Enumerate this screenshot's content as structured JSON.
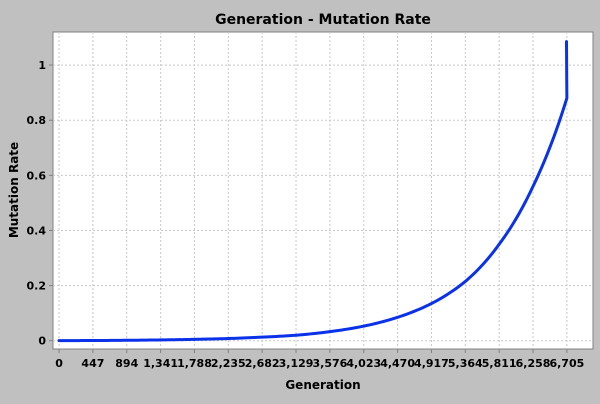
{
  "chart_data": {
    "type": "line",
    "title": "Generation - Mutation Rate",
    "xlabel": "Generation",
    "ylabel": "Mutation Rate",
    "x_tick_labels": [
      "0",
      "447",
      "894",
      "1,341",
      "1,788",
      "2,235",
      "2,682",
      "3,129",
      "3,576",
      "4,023",
      "4,470",
      "4,917",
      "5,364",
      "5,811",
      "6,258",
      "6,705"
    ],
    "y_ticks": [
      0,
      0.2,
      0.4,
      0.6,
      0.8,
      1
    ],
    "y_tick_labels": [
      "0",
      "0.2",
      "0.4",
      "0.6",
      "0.8",
      "1"
    ],
    "xlim": [
      -80,
      7050
    ],
    "ylim": [
      -0.03,
      1.12
    ],
    "grid": true,
    "line_color": "#0a32e8",
    "series": [
      {
        "name": "",
        "x": [
          0,
          447,
          894,
          1341,
          1788,
          2235,
          2682,
          3129,
          3576,
          4023,
          4470,
          4917,
          5364,
          5811,
          6258,
          6705,
          6700
        ],
        "values": [
          0.0004,
          0.0008,
          0.0016,
          0.003,
          0.005,
          0.008,
          0.013,
          0.02,
          0.033,
          0.053,
          0.085,
          0.135,
          0.215,
          0.35,
          0.56,
          0.88,
          1.085
        ]
      }
    ]
  }
}
